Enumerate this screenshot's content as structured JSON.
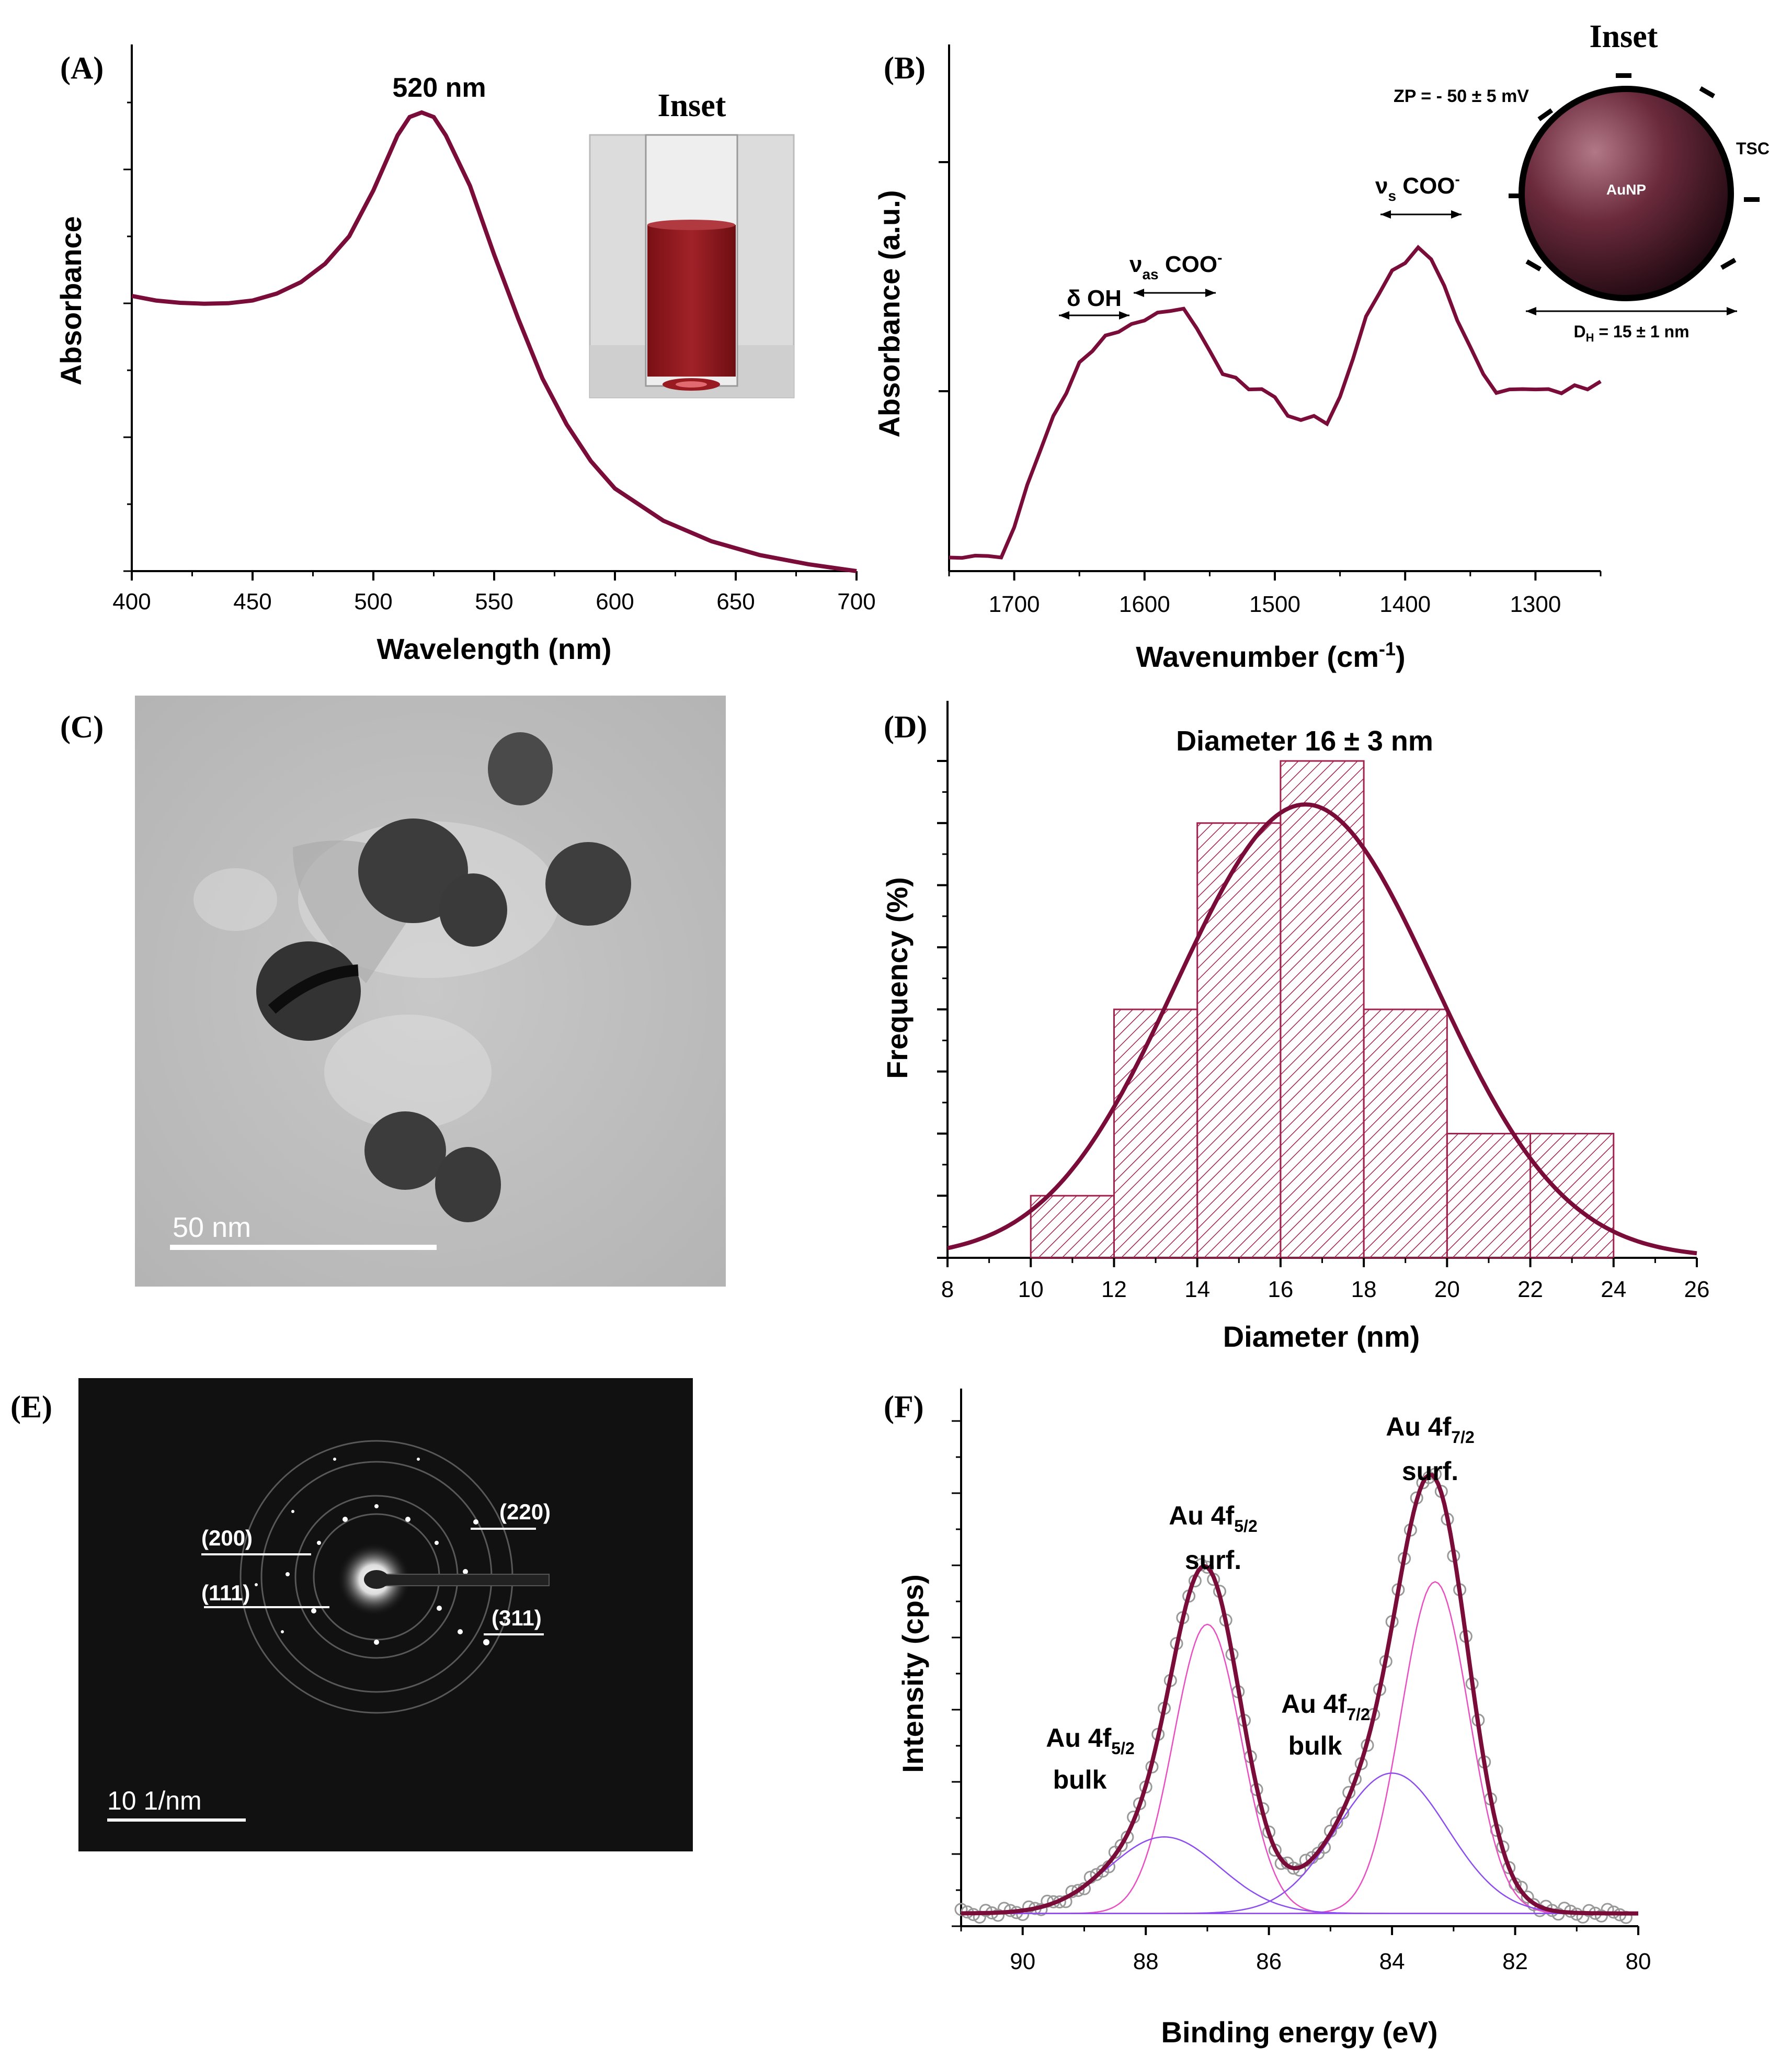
{
  "colors": {
    "curve": "#7a0c3a",
    "hatch": "#a3214f",
    "fit_component": "#e84fc0",
    "fit_component2": "#8c4cf0"
  },
  "panels": {
    "A": {
      "label": "(A)",
      "peak_label": "520 nm",
      "inset_title": "Inset"
    },
    "B": {
      "label": "(B)",
      "inset_title": "Inset",
      "zp": "ZP = - 50 ± 5 mV",
      "tsc": "TSC",
      "aunp": "AuNP",
      "dh_main": "D",
      "dh_sub": "H",
      "dh_rest": " = 15 ± 1 nm",
      "dOH": "δ OH",
      "nu_as_main": "ν",
      "nu_as_sub": "as",
      "nu_as_rest": " COO",
      "nu_s_main": "ν",
      "nu_s_sub": "s",
      "nu_s_rest": " COO",
      "sup_minus": "-"
    },
    "C": {
      "label": "(C)",
      "scale_bar": "50 nm"
    },
    "D": {
      "label": "(D)",
      "title": "Diameter 16 ± 3 nm"
    },
    "E": {
      "label": "(E)",
      "scale_bar": "10 1/nm",
      "rings": [
        "(200)",
        "(220)",
        "(111)",
        "(311)"
      ]
    },
    "F": {
      "label": "(F)",
      "peaks": [
        {
          "main": "Au 4f",
          "sub": "7/2",
          "line2": "surf."
        },
        {
          "main": "Au 4f",
          "sub": "5/2",
          "line2": "surf."
        },
        {
          "main": "Au 4f",
          "sub": "7/2",
          "line2": "bulk"
        },
        {
          "main": "Au 4f",
          "sub": "5/2",
          "line2": "bulk"
        }
      ]
    }
  },
  "chart_data": [
    {
      "panel": "A",
      "type": "line",
      "title": "",
      "xlabel": "Wavelength (nm)",
      "ylabel": "Absorbance",
      "xlim": [
        400,
        700
      ],
      "ylim": [
        0,
        1.0
      ],
      "xticks": [
        400,
        450,
        500,
        550,
        600,
        650,
        700
      ],
      "x": [
        400,
        410,
        420,
        430,
        440,
        450,
        460,
        470,
        480,
        490,
        500,
        505,
        510,
        515,
        520,
        525,
        530,
        540,
        550,
        560,
        570,
        580,
        590,
        600,
        620,
        640,
        660,
        680,
        700
      ],
      "y": [
        0.6,
        0.59,
        0.585,
        0.583,
        0.584,
        0.59,
        0.605,
        0.63,
        0.67,
        0.73,
        0.83,
        0.89,
        0.95,
        0.99,
        1.0,
        0.99,
        0.95,
        0.84,
        0.69,
        0.55,
        0.42,
        0.32,
        0.24,
        0.18,
        0.11,
        0.065,
        0.035,
        0.015,
        0.0
      ]
    },
    {
      "panel": "B",
      "type": "line",
      "title": "",
      "xlabel": "Wavenumber (cm",
      "xlabel_sup": "-1",
      "xlabel_end": ")",
      "ylabel": "Absorbance (a.u.)",
      "xlim": [
        1750,
        1250
      ],
      "ylim": [
        0,
        1.0
      ],
      "xticks": [
        1700,
        1600,
        1500,
        1400,
        1300
      ],
      "x": [
        1750,
        1740,
        1730,
        1720,
        1710,
        1700,
        1690,
        1680,
        1670,
        1660,
        1650,
        1640,
        1630,
        1620,
        1610,
        1600,
        1590,
        1580,
        1570,
        1560,
        1550,
        1540,
        1530,
        1520,
        1510,
        1500,
        1490,
        1480,
        1470,
        1460,
        1450,
        1440,
        1430,
        1420,
        1410,
        1400,
        1390,
        1380,
        1370,
        1360,
        1350,
        1340,
        1330,
        1320,
        1310,
        1300,
        1290,
        1280,
        1270,
        1260,
        1250
      ],
      "y": [
        0.03,
        0.04,
        0.035,
        0.045,
        0.03,
        0.12,
        0.22,
        0.32,
        0.4,
        0.47,
        0.54,
        0.58,
        0.61,
        0.63,
        0.64,
        0.66,
        0.67,
        0.685,
        0.68,
        0.64,
        0.57,
        0.52,
        0.5,
        0.48,
        0.47,
        0.46,
        0.4,
        0.4,
        0.4,
        0.39,
        0.45,
        0.56,
        0.66,
        0.73,
        0.78,
        0.81,
        0.84,
        0.82,
        0.74,
        0.66,
        0.58,
        0.52,
        0.46,
        0.48,
        0.47,
        0.48,
        0.47,
        0.47,
        0.48,
        0.48,
        0.49
      ]
    },
    {
      "panel": "D",
      "type": "bar",
      "title": "Diameter 16 ± 3 nm",
      "xlabel": "Diameter (nm)",
      "ylabel": "Frequency (%)",
      "xlim": [
        8,
        26
      ],
      "ylim": [
        0,
        8.5
      ],
      "xticks": [
        8,
        10,
        12,
        14,
        16,
        18,
        20,
        22,
        24,
        26
      ],
      "bins": [
        [
          10,
          12
        ],
        [
          12,
          14
        ],
        [
          14,
          16
        ],
        [
          16,
          18
        ],
        [
          18,
          20
        ],
        [
          20,
          22
        ],
        [
          22,
          24
        ]
      ],
      "values": [
        1,
        4,
        7,
        8,
        4,
        2,
        2
      ],
      "fit": {
        "type": "gaussian",
        "mean": 16.6,
        "sd": 3.1,
        "peak": 7.3
      }
    },
    {
      "panel": "F",
      "type": "line",
      "title": "",
      "xlabel": "Binding energy (eV)",
      "ylabel": "Intensity (cps)",
      "xlim": [
        91,
        80
      ],
      "ylim": [
        0,
        1.0
      ],
      "xticks": [
        90,
        88,
        86,
        84,
        82,
        80
      ],
      "components": [
        {
          "name": "Au 4f7/2 surf.",
          "center": 83.3,
          "sigma": 0.55,
          "height": 0.78
        },
        {
          "name": "Au 4f5/2 surf.",
          "center": 87.0,
          "sigma": 0.55,
          "height": 0.68
        },
        {
          "name": "Au 4f7/2 bulk",
          "center": 84.0,
          "sigma": 0.9,
          "height": 0.33
        },
        {
          "name": "Au 4f5/2 bulk",
          "center": 87.7,
          "sigma": 0.9,
          "height": 0.18
        }
      ],
      "baseline": 0.03
    }
  ]
}
